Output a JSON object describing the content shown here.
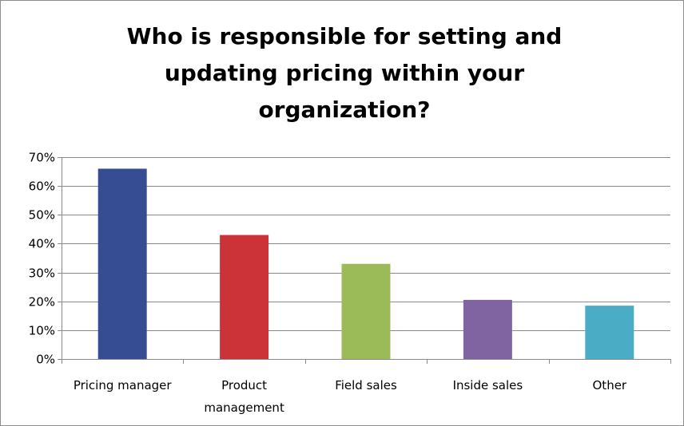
{
  "chart_data": {
    "type": "bar",
    "title_lines": [
      "Who is responsible for setting and",
      "updating pricing within your",
      "organization?"
    ],
    "categories": [
      [
        "Pricing manager"
      ],
      [
        "Product",
        "management"
      ],
      [
        "Field sales"
      ],
      [
        "Inside sales"
      ],
      [
        "Other"
      ]
    ],
    "values": [
      0.66,
      0.43,
      0.33,
      0.205,
      0.185
    ],
    "colors": [
      "#364c93",
      "#cc3339",
      "#9bbb59",
      "#8064a2",
      "#4bacc6"
    ],
    "ylim": [
      0,
      0.7
    ],
    "yticks": [
      0,
      0.1,
      0.2,
      0.3,
      0.4,
      0.5,
      0.6,
      0.7
    ],
    "ytick_labels": [
      "0%",
      "10%",
      "20%",
      "30%",
      "40%",
      "50%",
      "60%",
      "70%"
    ],
    "grid": true,
    "legend": "none",
    "xlabel": "",
    "ylabel": ""
  }
}
